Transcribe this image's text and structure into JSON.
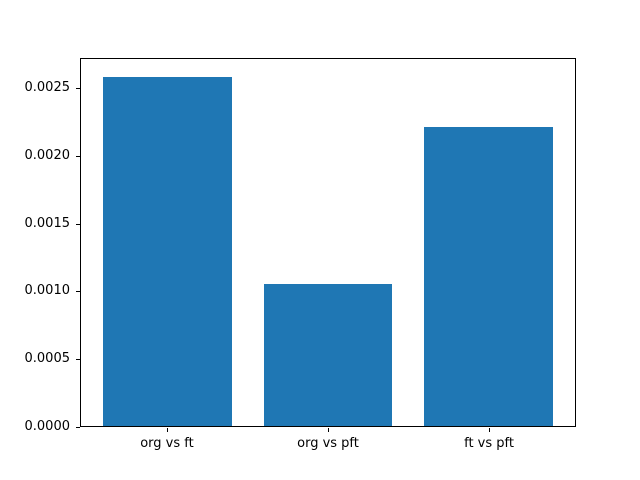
{
  "chart_data": {
    "type": "bar",
    "title": "",
    "xlabel": "",
    "ylabel": "",
    "categories": [
      "org vs ft",
      "org vs pft",
      "ft vs pft"
    ],
    "values": [
      0.00259,
      0.00105,
      0.00222
    ],
    "bar_color": "#1f77b4",
    "bar_width": 0.8,
    "xlim": [
      -0.54,
      2.54
    ],
    "ylim": [
      0,
      0.002722
    ],
    "yticks": [
      0.0,
      0.0005,
      0.001,
      0.0015,
      0.002,
      0.0025
    ],
    "ytick_labels": [
      "0.0000",
      "0.0005",
      "0.0010",
      "0.0015",
      "0.0020",
      "0.0025"
    ],
    "grid": false,
    "legend": "none"
  },
  "figure": {
    "background": "#ffffff",
    "spine_color": "#000000",
    "text_color": "#000000"
  }
}
